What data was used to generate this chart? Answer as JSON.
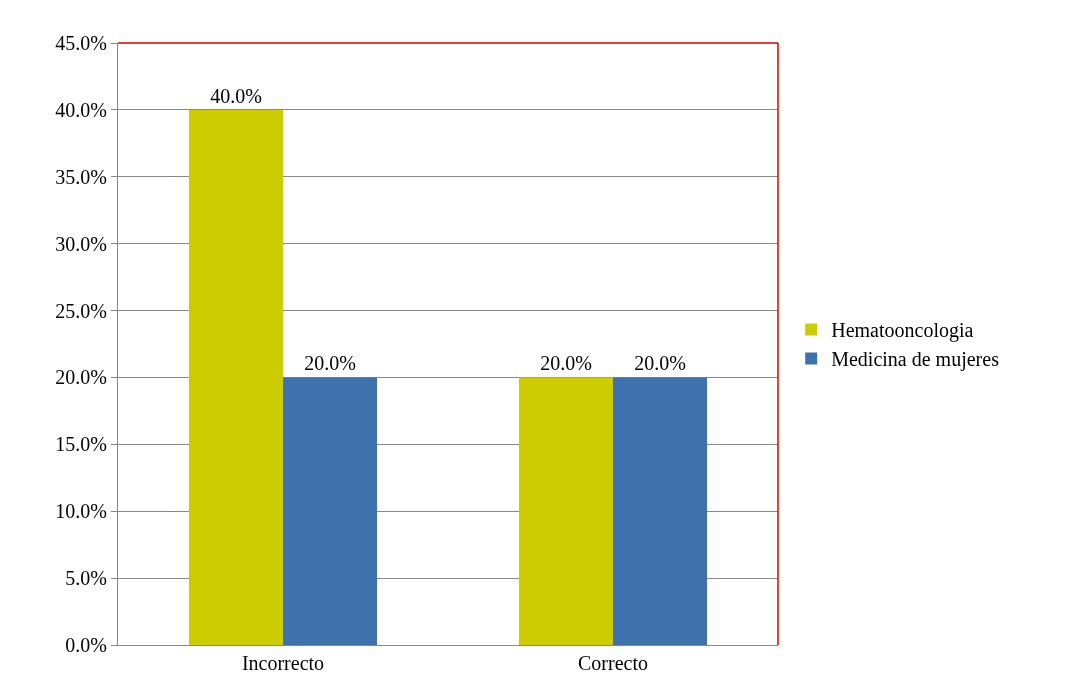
{
  "chart_data": {
    "type": "bar",
    "categories": [
      "Incorrecto",
      "Correcto"
    ],
    "series": [
      {
        "name": "Hematooncologia",
        "color": "#cccc00",
        "values": [
          40,
          20
        ],
        "value_labels": [
          "40.0%",
          "20.0%"
        ]
      },
      {
        "name": "Medicina de mujeres",
        "color": "#3f72ad",
        "values": [
          20,
          20
        ],
        "value_labels": [
          "20.0%",
          "20.0%"
        ]
      }
    ],
    "ylim": [
      0,
      45
    ],
    "yticks": [
      {
        "value": 0,
        "label": "0.0%"
      },
      {
        "value": 5,
        "label": "5.0%"
      },
      {
        "value": 10,
        "label": "10.0%"
      },
      {
        "value": 15,
        "label": "15.0%"
      },
      {
        "value": 20,
        "label": "20.0%"
      },
      {
        "value": 25,
        "label": "25.0%"
      },
      {
        "value": 30,
        "label": "30.0%"
      },
      {
        "value": 35,
        "label": "35.0%"
      },
      {
        "value": 40,
        "label": "40.0%"
      },
      {
        "value": 45,
        "label": "45.0%"
      }
    ],
    "grid": "y",
    "legend": "right"
  }
}
